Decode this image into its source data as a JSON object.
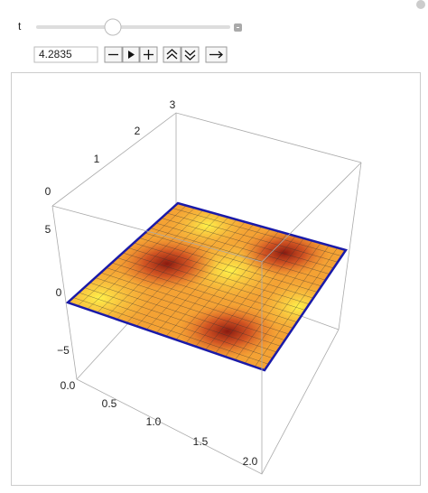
{
  "control": {
    "label": "t",
    "value": "4.2835"
  },
  "plot": {
    "z_ticks": [
      "0",
      "1",
      "2",
      "3"
    ],
    "y_ticks": [
      "5",
      "0",
      "−5"
    ],
    "x_ticks": [
      "0.0",
      "0.5",
      "1.0",
      "1.5",
      "2.0"
    ]
  }
}
